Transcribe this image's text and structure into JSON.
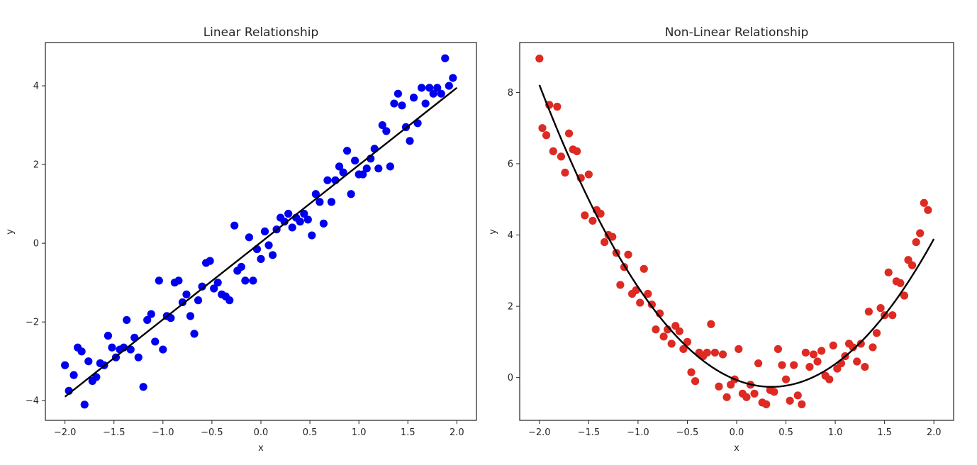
{
  "chart_data": [
    {
      "type": "scatter",
      "title": "Linear Relationship",
      "xlabel": "x",
      "ylabel": "y",
      "xlim": [
        -2.2,
        2.2
      ],
      "ylim": [
        -4.5,
        5.1
      ],
      "xticks": [
        -2.0,
        -1.5,
        -1.0,
        -0.5,
        0.0,
        0.5,
        1.0,
        1.5,
        2.0
      ],
      "xtick_labels": [
        "−2.0",
        "−1.5",
        "−1.0",
        "−0.5",
        "0.0",
        "0.5",
        "1.0",
        "1.5",
        "2.0"
      ],
      "yticks": [
        -4,
        -2,
        0,
        2,
        4
      ],
      "ytick_labels": [
        "−4",
        "−2",
        "0",
        "2",
        "4"
      ],
      "grid": false,
      "series": [
        {
          "kind": "scatter",
          "color": "#0000ee",
          "points": [
            [
              -2.0,
              -3.1
            ],
            [
              -1.96,
              -3.75
            ],
            [
              -1.91,
              -3.35
            ],
            [
              -1.87,
              -2.65
            ],
            [
              -1.83,
              -2.75
            ],
            [
              -1.8,
              -4.1
            ],
            [
              -1.76,
              -3.0
            ],
            [
              -1.72,
              -3.5
            ],
            [
              -1.68,
              -3.4
            ],
            [
              -1.64,
              -3.05
            ],
            [
              -1.6,
              -3.1
            ],
            [
              -1.56,
              -2.35
            ],
            [
              -1.52,
              -2.65
            ],
            [
              -1.48,
              -2.9
            ],
            [
              -1.44,
              -2.7
            ],
            [
              -1.4,
              -2.65
            ],
            [
              -1.37,
              -1.95
            ],
            [
              -1.33,
              -2.7
            ],
            [
              -1.29,
              -2.4
            ],
            [
              -1.25,
              -2.9
            ],
            [
              -1.2,
              -3.65
            ],
            [
              -1.16,
              -1.95
            ],
            [
              -1.12,
              -1.8
            ],
            [
              -1.08,
              -2.5
            ],
            [
              -1.04,
              -0.95
            ],
            [
              -1.0,
              -2.7
            ],
            [
              -0.96,
              -1.85
            ],
            [
              -0.92,
              -1.9
            ],
            [
              -0.88,
              -1.0
            ],
            [
              -0.84,
              -0.95
            ],
            [
              -0.8,
              -1.5
            ],
            [
              -0.76,
              -1.3
            ],
            [
              -0.72,
              -1.85
            ],
            [
              -0.68,
              -2.3
            ],
            [
              -0.64,
              -1.45
            ],
            [
              -0.6,
              -1.1
            ],
            [
              -0.56,
              -0.5
            ],
            [
              -0.52,
              -0.45
            ],
            [
              -0.48,
              -1.15
            ],
            [
              -0.44,
              -1.0
            ],
            [
              -0.4,
              -1.3
            ],
            [
              -0.36,
              -1.35
            ],
            [
              -0.32,
              -1.45
            ],
            [
              -0.27,
              0.45
            ],
            [
              -0.24,
              -0.7
            ],
            [
              -0.2,
              -0.6
            ],
            [
              -0.16,
              -0.95
            ],
            [
              -0.12,
              0.15
            ],
            [
              -0.08,
              -0.95
            ],
            [
              -0.04,
              -0.15
            ],
            [
              0.0,
              -0.4
            ],
            [
              0.04,
              0.3
            ],
            [
              0.08,
              -0.05
            ],
            [
              0.12,
              -0.3
            ],
            [
              0.16,
              0.35
            ],
            [
              0.2,
              0.65
            ],
            [
              0.24,
              0.55
            ],
            [
              0.28,
              0.75
            ],
            [
              0.32,
              0.4
            ],
            [
              0.36,
              0.65
            ],
            [
              0.4,
              0.55
            ],
            [
              0.44,
              0.75
            ],
            [
              0.48,
              0.6
            ],
            [
              0.52,
              0.2
            ],
            [
              0.56,
              1.25
            ],
            [
              0.6,
              1.05
            ],
            [
              0.64,
              0.5
            ],
            [
              0.68,
              1.6
            ],
            [
              0.72,
              1.05
            ],
            [
              0.76,
              1.6
            ],
            [
              0.8,
              1.95
            ],
            [
              0.84,
              1.8
            ],
            [
              0.88,
              2.35
            ],
            [
              0.92,
              1.25
            ],
            [
              0.96,
              2.1
            ],
            [
              1.0,
              1.75
            ],
            [
              1.04,
              1.75
            ],
            [
              1.08,
              1.9
            ],
            [
              1.12,
              2.15
            ],
            [
              1.16,
              2.4
            ],
            [
              1.2,
              1.9
            ],
            [
              1.24,
              3.0
            ],
            [
              1.28,
              2.85
            ],
            [
              1.32,
              1.95
            ],
            [
              1.36,
              3.55
            ],
            [
              1.4,
              3.8
            ],
            [
              1.44,
              3.5
            ],
            [
              1.48,
              2.95
            ],
            [
              1.52,
              2.6
            ],
            [
              1.56,
              3.7
            ],
            [
              1.6,
              3.05
            ],
            [
              1.64,
              3.95
            ],
            [
              1.68,
              3.55
            ],
            [
              1.72,
              3.95
            ],
            [
              1.76,
              3.8
            ],
            [
              1.8,
              3.95
            ],
            [
              1.84,
              3.8
            ],
            [
              1.88,
              4.7
            ],
            [
              1.92,
              4.0
            ],
            [
              1.96,
              4.2
            ]
          ]
        },
        {
          "kind": "line",
          "color": "#000000",
          "points": [
            [
              -2.0,
              -3.9
            ],
            [
              2.0,
              3.95
            ]
          ]
        }
      ]
    },
    {
      "type": "scatter",
      "title": "Non-Linear Relationship",
      "xlabel": "x",
      "ylabel": "y",
      "xlim": [
        -2.2,
        2.2
      ],
      "ylim": [
        -1.2,
        9.4
      ],
      "xticks": [
        -2.0,
        -1.5,
        -1.0,
        -0.5,
        0.0,
        0.5,
        1.0,
        1.5,
        2.0
      ],
      "xtick_labels": [
        "−2.0",
        "−1.5",
        "−1.0",
        "−0.5",
        "0.0",
        "0.5",
        "1.0",
        "1.5",
        "2.0"
      ],
      "yticks": [
        0,
        2,
        4,
        6,
        8
      ],
      "ytick_labels": [
        "0",
        "2",
        "4",
        "6",
        "8"
      ],
      "grid": false,
      "series": [
        {
          "kind": "scatter",
          "color": "#dd2a22",
          "points": [
            [
              -2.0,
              8.95
            ],
            [
              -1.97,
              7.0
            ],
            [
              -1.93,
              6.8
            ],
            [
              -1.9,
              7.65
            ],
            [
              -1.86,
              6.35
            ],
            [
              -1.82,
              7.6
            ],
            [
              -1.78,
              6.2
            ],
            [
              -1.74,
              5.75
            ],
            [
              -1.7,
              6.85
            ],
            [
              -1.66,
              6.4
            ],
            [
              -1.62,
              6.35
            ],
            [
              -1.58,
              5.6
            ],
            [
              -1.54,
              4.55
            ],
            [
              -1.5,
              5.7
            ],
            [
              -1.46,
              4.4
            ],
            [
              -1.42,
              4.7
            ],
            [
              -1.38,
              4.6
            ],
            [
              -1.34,
              3.8
            ],
            [
              -1.3,
              4.0
            ],
            [
              -1.26,
              3.95
            ],
            [
              -1.22,
              3.5
            ],
            [
              -1.18,
              2.6
            ],
            [
              -1.14,
              3.1
            ],
            [
              -1.1,
              3.45
            ],
            [
              -1.06,
              2.35
            ],
            [
              -1.02,
              2.45
            ],
            [
              -0.98,
              2.1
            ],
            [
              -0.94,
              3.05
            ],
            [
              -0.9,
              2.35
            ],
            [
              -0.86,
              2.05
            ],
            [
              -0.82,
              1.35
            ],
            [
              -0.78,
              1.8
            ],
            [
              -0.74,
              1.15
            ],
            [
              -0.7,
              1.35
            ],
            [
              -0.66,
              0.95
            ],
            [
              -0.62,
              1.45
            ],
            [
              -0.58,
              1.3
            ],
            [
              -0.54,
              0.8
            ],
            [
              -0.5,
              1.0
            ],
            [
              -0.46,
              0.15
            ],
            [
              -0.42,
              -0.1
            ],
            [
              -0.38,
              0.7
            ],
            [
              -0.34,
              0.6
            ],
            [
              -0.3,
              0.7
            ],
            [
              -0.26,
              1.5
            ],
            [
              -0.22,
              0.7
            ],
            [
              -0.18,
              -0.25
            ],
            [
              -0.14,
              0.65
            ],
            [
              -0.1,
              -0.55
            ],
            [
              -0.06,
              -0.2
            ],
            [
              -0.02,
              -0.05
            ],
            [
              0.02,
              0.8
            ],
            [
              0.06,
              -0.45
            ],
            [
              0.1,
              -0.55
            ],
            [
              0.14,
              -0.2
            ],
            [
              0.18,
              -0.45
            ],
            [
              0.22,
              0.4
            ],
            [
              0.26,
              -0.7
            ],
            [
              0.3,
              -0.75
            ],
            [
              0.34,
              -0.35
            ],
            [
              0.38,
              -0.4
            ],
            [
              0.42,
              0.8
            ],
            [
              0.46,
              0.35
            ],
            [
              0.5,
              -0.05
            ],
            [
              0.54,
              -0.65
            ],
            [
              0.58,
              0.35
            ],
            [
              0.62,
              -0.5
            ],
            [
              0.66,
              -0.75
            ],
            [
              0.7,
              0.7
            ],
            [
              0.74,
              0.3
            ],
            [
              0.78,
              0.65
            ],
            [
              0.82,
              0.45
            ],
            [
              0.86,
              0.75
            ],
            [
              0.9,
              0.05
            ],
            [
              0.94,
              -0.05
            ],
            [
              0.98,
              0.9
            ],
            [
              1.02,
              0.25
            ],
            [
              1.06,
              0.4
            ],
            [
              1.1,
              0.6
            ],
            [
              1.14,
              0.95
            ],
            [
              1.18,
              0.85
            ],
            [
              1.22,
              0.45
            ],
            [
              1.26,
              0.95
            ],
            [
              1.3,
              0.3
            ],
            [
              1.34,
              1.85
            ],
            [
              1.38,
              0.85
            ],
            [
              1.42,
              1.25
            ],
            [
              1.46,
              1.95
            ],
            [
              1.5,
              1.75
            ],
            [
              1.54,
              2.95
            ],
            [
              1.58,
              1.75
            ],
            [
              1.62,
              2.7
            ],
            [
              1.66,
              2.65
            ],
            [
              1.7,
              2.3
            ],
            [
              1.74,
              3.3
            ],
            [
              1.78,
              3.15
            ],
            [
              1.82,
              3.8
            ],
            [
              1.86,
              4.05
            ],
            [
              1.9,
              4.9
            ],
            [
              1.94,
              4.7
            ]
          ]
        },
        {
          "kind": "curve",
          "color": "#000000",
          "coeffs": {
            "a": 1.53,
            "b": -1.08,
            "c": -0.07
          },
          "x_range": [
            -2.0,
            2.0
          ]
        }
      ]
    }
  ]
}
